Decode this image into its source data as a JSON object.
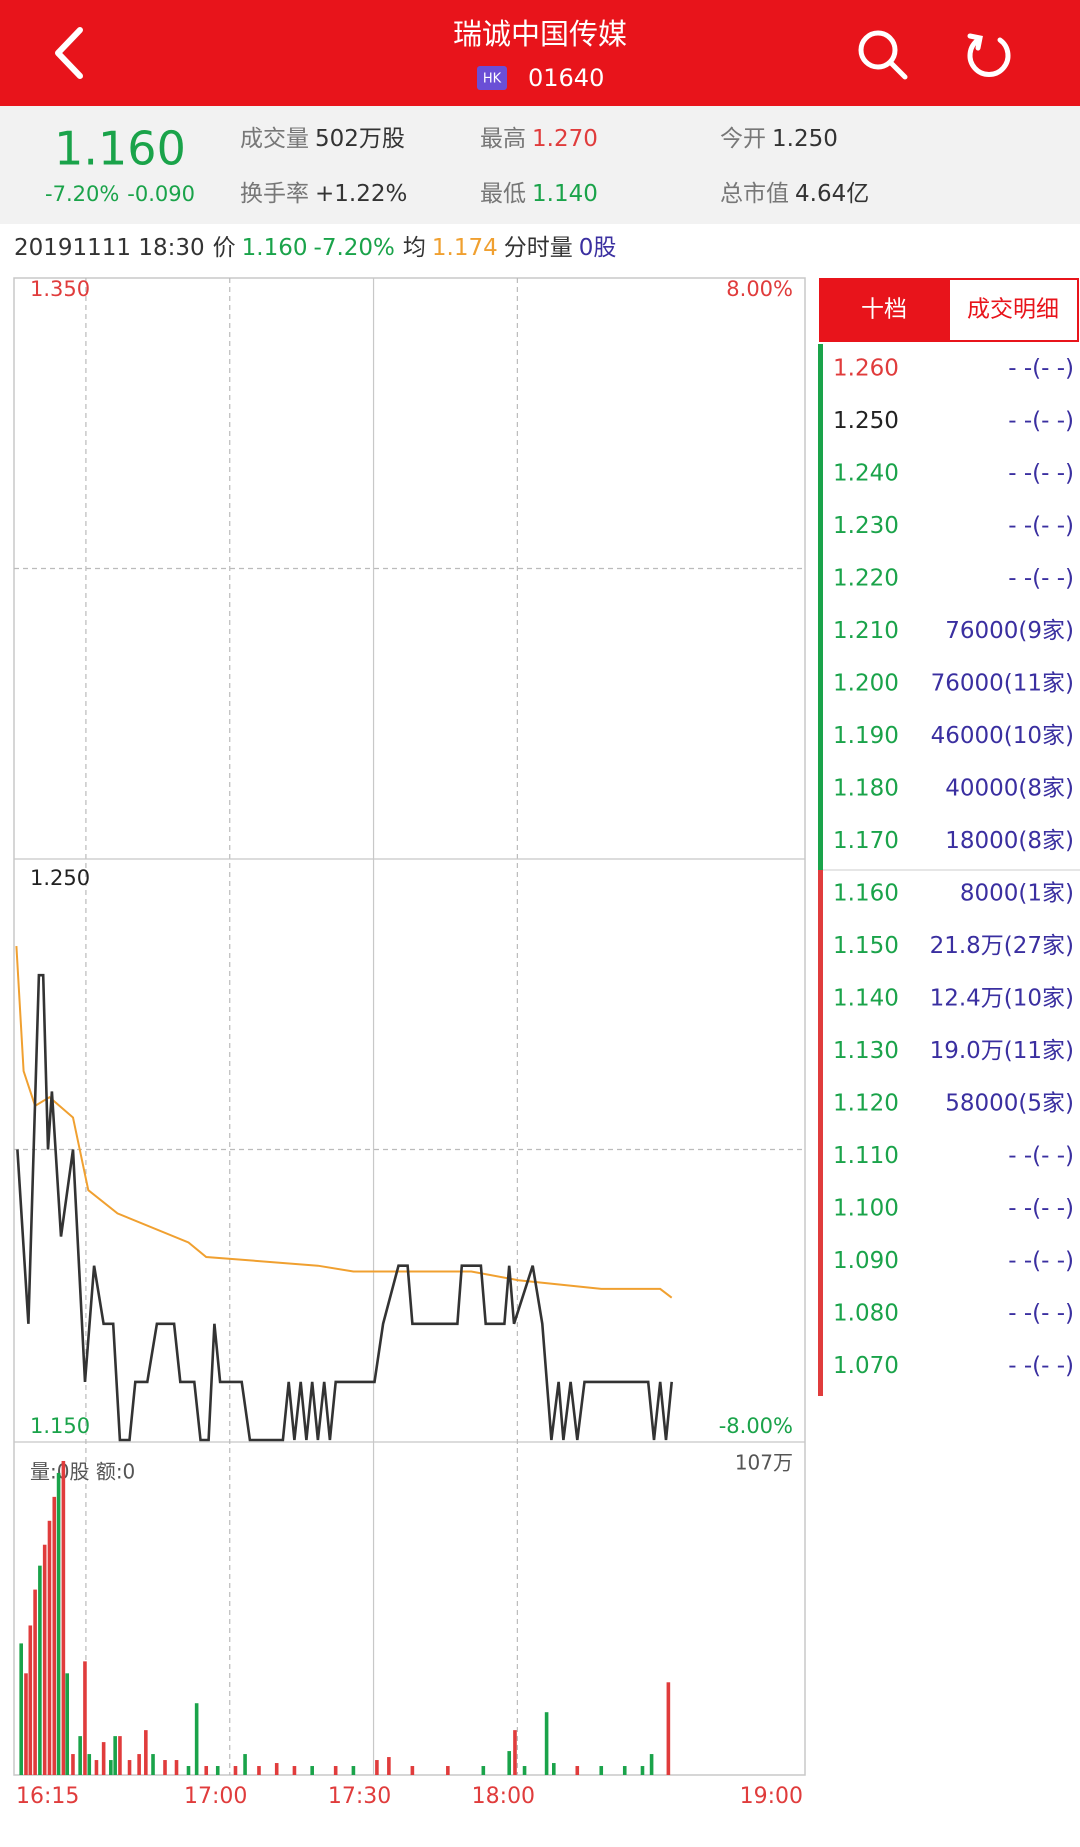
{
  "header": {
    "title": "瑞诚中国传媒",
    "market": "HK",
    "code": "01640"
  },
  "quote": {
    "price": "1.160",
    "change_pct": "-7.20%",
    "change": "-0.090",
    "stats": [
      {
        "label": "成交量",
        "value": "502万股",
        "color": "#333333"
      },
      {
        "label": "最高",
        "value": "1.270",
        "color": "#e03c3c"
      },
      {
        "label": "今开",
        "value": "1.250",
        "color": "#333333"
      },
      {
        "label": "换手率",
        "value": "+1.22%",
        "color": "#333333"
      },
      {
        "label": "最低",
        "value": "1.140",
        "color": "#1aa34a"
      },
      {
        "label": "总市值",
        "value": "4.64亿",
        "color": "#333333"
      }
    ]
  },
  "info": {
    "datetime": "20191111 18:30",
    "price": "1.160",
    "pct": "-7.20%",
    "avg": "1.174",
    "vol_label": "分时量",
    "vol": "0股"
  },
  "chart_data": [
    {
      "type": "line",
      "xlim": [
        0,
        165
      ],
      "ylim": [
        1.15,
        1.35
      ],
      "yticks": [
        {
          "value": 1.35,
          "label": "1.350"
        },
        {
          "value": 1.25,
          "label": "1.250"
        },
        {
          "value": 1.15,
          "label": "1.150"
        }
      ],
      "yminor": [
        1.3,
        1.2
      ],
      "y2lim": [
        -8,
        8
      ],
      "y2ticks": [
        {
          "value": 8,
          "label": "8.00%"
        },
        {
          "value": -8,
          "label": "-8.00%"
        }
      ],
      "series": [
        {
          "name": "价",
          "color": "#333333",
          "x": [
            0.7,
            3,
            5.2,
            6.1,
            7.1,
            7.9,
            9.8,
            12.3,
            14.8,
            16.7,
            18.7,
            20.7,
            22.1,
            24.1,
            25.3,
            27.8,
            29.8,
            33.4,
            34.7,
            37.6,
            38.9,
            40.6,
            41.8,
            43,
            47.5,
            49.2,
            56.1,
            57.3,
            58.5,
            59.8,
            61,
            62.2,
            63.4,
            64.7,
            65.9,
            67.1,
            75.2,
            77,
            80.2,
            82.1,
            83.1,
            92.5,
            93.4,
            97.4,
            98.4,
            102.3,
            103.3,
            104.3,
            108.2,
            110.2,
            112.1,
            113.6,
            114.6,
            116.1,
            117.5,
            119,
            121.2,
            132.3,
            133.5,
            134.8,
            136,
            137.2
          ],
          "values": [
            1.2,
            1.17,
            1.23,
            1.23,
            1.2,
            1.21,
            1.185,
            1.2,
            1.16,
            1.18,
            1.17,
            1.17,
            1.15,
            1.15,
            1.16,
            1.16,
            1.17,
            1.17,
            1.16,
            1.16,
            1.15,
            1.15,
            1.17,
            1.16,
            1.16,
            1.15,
            1.15,
            1.16,
            1.15,
            1.16,
            1.15,
            1.16,
            1.15,
            1.16,
            1.15,
            1.16,
            1.16,
            1.17,
            1.18,
            1.18,
            1.17,
            1.17,
            1.18,
            1.18,
            1.17,
            1.17,
            1.18,
            1.17,
            1.18,
            1.17,
            1.15,
            1.16,
            1.15,
            1.16,
            1.15,
            1.16,
            1.16,
            1.16,
            1.15,
            1.16,
            1.15,
            1.16
          ]
        },
        {
          "name": "均",
          "color": "#f0a030",
          "x": [
            0.5,
            2,
            4.4,
            7.4,
            12.3,
            15.5,
            21.6,
            36.4,
            40.1,
            63.4,
            70.8,
            95.4,
            105.2,
            122.5,
            134.8,
            137.2
          ],
          "values": [
            1.235,
            1.2135,
            1.2075,
            1.209,
            1.2055,
            1.193,
            1.189,
            1.184,
            1.1815,
            1.18,
            1.179,
            1.179,
            1.1775,
            1.176,
            1.176,
            1.1745
          ]
        }
      ]
    },
    {
      "type": "bar",
      "label": "量:0股 额:0",
      "xlim": [
        0,
        165
      ],
      "xticks": [
        {
          "value": 0,
          "label": "16:15"
        },
        {
          "value": 45,
          "label": "17:00"
        },
        {
          "value": 75,
          "label": "17:30"
        },
        {
          "value": 105,
          "label": "18:00"
        },
        {
          "value": 165,
          "label": "19:00"
        }
      ],
      "xminor": [
        15
      ],
      "ylim": [
        0,
        107
      ],
      "yticks": [
        {
          "value": 107,
          "label": "107万"
        }
      ],
      "x": [
        1.5,
        2.5,
        3.4,
        4.4,
        5.4,
        6.4,
        7.4,
        8.4,
        9.3,
        10.3,
        11.1,
        12.3,
        13.8,
        14.8,
        15.7,
        17.2,
        18.7,
        20.2,
        21.1,
        22.1,
        24.1,
        26.1,
        27.5,
        29,
        31.5,
        33.9,
        36.4,
        38.1,
        40.1,
        42.5,
        46.2,
        48.2,
        51.1,
        54.8,
        58.5,
        62.2,
        67.1,
        70.8,
        75.7,
        78.2,
        83.1,
        90.5,
        97.9,
        103.3,
        104.5,
        106.5,
        111.1,
        112.6,
        117.5,
        122.5,
        127.4,
        131.1,
        133,
        136.5
      ],
      "values": [
        44,
        34,
        50,
        62,
        70,
        77,
        85,
        93,
        101,
        105,
        34,
        7,
        13,
        38,
        7,
        5,
        11,
        5,
        13,
        13,
        5,
        7,
        15,
        7,
        5,
        5,
        3,
        24,
        3,
        3,
        3,
        7,
        3,
        4,
        3,
        3,
        3,
        3,
        5,
        6,
        3,
        3,
        3,
        8,
        15,
        3,
        21,
        4,
        3,
        3,
        3,
        3,
        7,
        31
      ],
      "colors": [
        "#1aa34a",
        "#e03c3c",
        "#e03c3c",
        "#e03c3c",
        "#1aa34a",
        "#e03c3c",
        "#e03c3c",
        "#e03c3c",
        "#1aa34a",
        "#e03c3c",
        "#1aa34a",
        "#e03c3c",
        "#1aa34a",
        "#e03c3c",
        "#1aa34a",
        "#e03c3c",
        "#e03c3c",
        "#1aa34a",
        "#1aa34a",
        "#e03c3c",
        "#e03c3c",
        "#e03c3c",
        "#e03c3c",
        "#1aa34a",
        "#e03c3c",
        "#e03c3c",
        "#1aa34a",
        "#1aa34a",
        "#e03c3c",
        "#1aa34a",
        "#e03c3c",
        "#1aa34a",
        "#e03c3c",
        "#e03c3c",
        "#e03c3c",
        "#1aa34a",
        "#e03c3c",
        "#1aa34a",
        "#e03c3c",
        "#e03c3c",
        "#e03c3c",
        "#e03c3c",
        "#1aa34a",
        "#1aa34a",
        "#e03c3c",
        "#1aa34a",
        "#1aa34a",
        "#1aa34a",
        "#e03c3c",
        "#1aa34a",
        "#1aa34a",
        "#1aa34a",
        "#1aa34a",
        "#e03c3c"
      ]
    }
  ],
  "book": {
    "tabs": [
      "十档",
      "成交明细"
    ],
    "asks": [
      {
        "price": "1.260",
        "volume": "- -(- -)",
        "color": "#e03c3c"
      },
      {
        "price": "1.250",
        "volume": "- -(- -)",
        "color": "#222222"
      },
      {
        "price": "1.240",
        "volume": "- -(- -)",
        "color": "#1aa34a"
      },
      {
        "price": "1.230",
        "volume": "- -(- -)",
        "color": "#1aa34a"
      },
      {
        "price": "1.220",
        "volume": "- -(- -)",
        "color": "#1aa34a"
      },
      {
        "price": "1.210",
        "volume": "76000(9家)",
        "color": "#1aa34a"
      },
      {
        "price": "1.200",
        "volume": "76000(11家)",
        "color": "#1aa34a"
      },
      {
        "price": "1.190",
        "volume": "46000(10家)",
        "color": "#1aa34a"
      },
      {
        "price": "1.180",
        "volume": "40000(8家)",
        "color": "#1aa34a"
      },
      {
        "price": "1.170",
        "volume": "18000(8家)",
        "color": "#1aa34a"
      }
    ],
    "bids": [
      {
        "price": "1.160",
        "volume": "8000(1家)",
        "color": "#1aa34a"
      },
      {
        "price": "1.150",
        "volume": "21.8万(27家)",
        "color": "#1aa34a"
      },
      {
        "price": "1.140",
        "volume": "12.4万(10家)",
        "color": "#1aa34a"
      },
      {
        "price": "1.130",
        "volume": "19.0万(11家)",
        "color": "#1aa34a"
      },
      {
        "price": "1.120",
        "volume": "58000(5家)",
        "color": "#1aa34a"
      },
      {
        "price": "1.110",
        "volume": "- -(- -)",
        "color": "#1aa34a"
      },
      {
        "price": "1.100",
        "volume": "- -(- -)",
        "color": "#1aa34a"
      },
      {
        "price": "1.090",
        "volume": "- -(- -)",
        "color": "#1aa34a"
      },
      {
        "price": "1.080",
        "volume": "- -(- -)",
        "color": "#1aa34a"
      },
      {
        "price": "1.070",
        "volume": "- -(- -)",
        "color": "#1aa34a"
      }
    ]
  }
}
